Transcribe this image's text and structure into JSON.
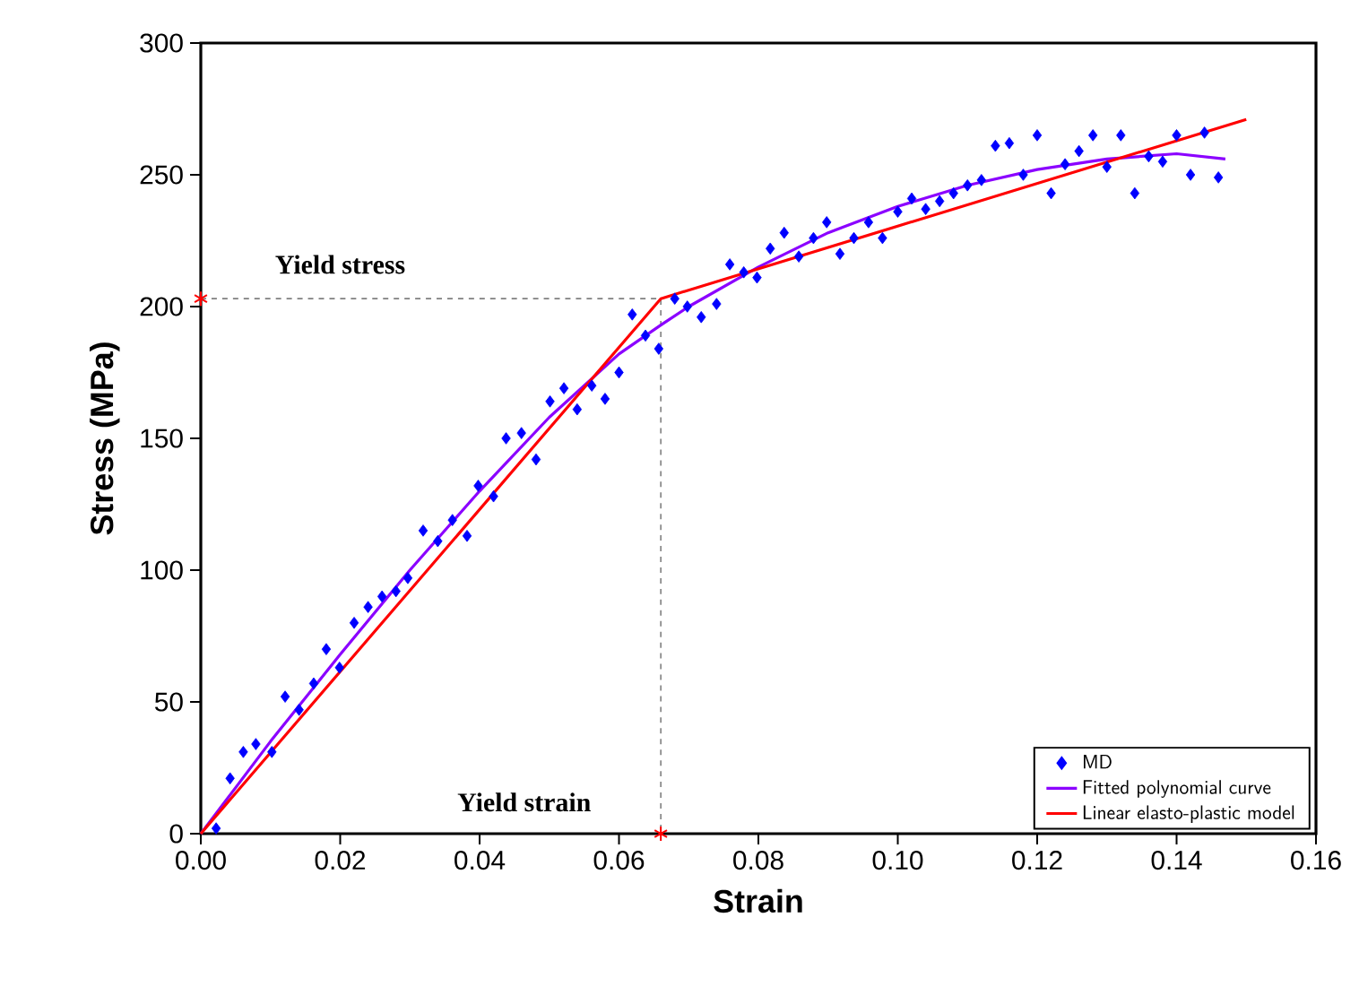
{
  "chart_data": {
    "type": "scatter",
    "xlabel": "Strain",
    "ylabel": "Stress (MPa)",
    "xlim": [
      0,
      0.16
    ],
    "ylim": [
      0,
      300
    ],
    "xticks": [
      {
        "value": 0,
        "label": "0.00"
      },
      {
        "value": 0.02,
        "label": "0.02"
      },
      {
        "value": 0.04,
        "label": "0.04"
      },
      {
        "value": 0.06,
        "label": "0.06"
      },
      {
        "value": 0.08,
        "label": "0.08"
      },
      {
        "value": 0.1,
        "label": "0.10"
      },
      {
        "value": 0.12,
        "label": "0.12"
      },
      {
        "value": 0.14,
        "label": "0.14"
      },
      {
        "value": 0.16,
        "label": "0.16"
      }
    ],
    "yticks": [
      0,
      50,
      100,
      150,
      200,
      250,
      300
    ],
    "legend": "bottom right",
    "annotations": [
      "Yield stress",
      "Yield strain"
    ],
    "series": [
      {
        "type": "line",
        "color": "#808080",
        "line_style": "dashed",
        "x": [
          0,
          0.066,
          0.066
        ],
        "values": [
          203,
          203,
          0
        ]
      },
      {
        "name": "MD",
        "color": "#0000ff",
        "marker": "diamond",
        "x": [
          0.0022,
          0.0042,
          0.0061,
          0.0079,
          0.0102,
          0.0121,
          0.0141,
          0.0162,
          0.018,
          0.0199,
          0.022,
          0.024,
          0.026,
          0.028,
          0.0297,
          0.0319,
          0.034,
          0.0361,
          0.0382,
          0.0398,
          0.042,
          0.0438,
          0.046,
          0.0481,
          0.0501,
          0.0521,
          0.054,
          0.0561,
          0.058,
          0.06,
          0.0619,
          0.0638,
          0.0657,
          0.068,
          0.0698,
          0.0718,
          0.074,
          0.0759,
          0.0779,
          0.0798,
          0.0817,
          0.0837,
          0.0858,
          0.0879,
          0.0898,
          0.0917,
          0.0937,
          0.0958,
          0.0978,
          0.1,
          0.102,
          0.104,
          0.106,
          0.108,
          0.11,
          0.112,
          0.114,
          0.116,
          0.118,
          0.12,
          0.122,
          0.124,
          0.126,
          0.128,
          0.13,
          0.132,
          0.134,
          0.136,
          0.138,
          0.14,
          0.142,
          0.144,
          0.146
        ],
        "values": [
          2,
          21,
          31,
          34,
          31,
          52,
          47,
          57,
          70,
          63,
          80,
          86,
          90,
          92,
          97,
          115,
          111,
          119,
          113,
          132,
          128,
          150,
          152,
          142,
          164,
          169,
          161,
          170,
          165,
          175,
          197,
          189,
          184,
          203,
          200,
          196,
          201,
          216,
          213,
          211,
          222,
          228,
          219,
          226,
          232,
          220,
          226,
          232,
          226,
          236,
          241,
          237,
          240,
          243,
          246,
          248,
          261,
          262,
          250,
          265,
          243,
          254,
          259,
          265,
          253,
          265,
          243,
          257,
          255,
          265,
          250,
          266,
          249
        ]
      },
      {
        "name": "Fitted polynomial curve",
        "type": "line",
        "color": "#8b00ff",
        "x": [
          0,
          0.01,
          0.02,
          0.03,
          0.04,
          0.05,
          0.06,
          0.066,
          0.07,
          0.08,
          0.09,
          0.1,
          0.11,
          0.12,
          0.13,
          0.14,
          0.147
        ],
        "values": [
          0,
          35,
          68,
          100,
          130,
          158,
          182,
          193,
          200,
          215,
          228,
          238,
          246,
          252,
          256,
          258,
          256
        ]
      },
      {
        "name": "Linear elasto-plastic model",
        "type": "line",
        "color": "#ff0000",
        "x": [
          0,
          0.066,
          0.15
        ],
        "values": [
          0,
          203,
          271
        ]
      },
      {
        "type": "scatter",
        "color": "#ff0000",
        "marker": "cross",
        "x": [
          0,
          0.066
        ],
        "values": [
          203,
          0
        ]
      }
    ]
  }
}
